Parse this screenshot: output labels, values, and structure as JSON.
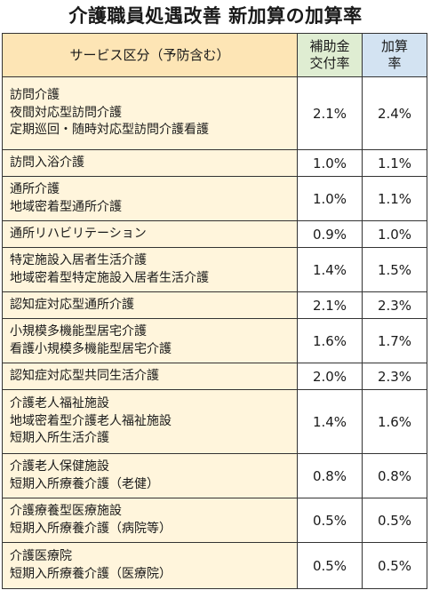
{
  "title": "介護職員処遇改善 新加算の加算率",
  "table": {
    "headers": {
      "service": "サービス区分（予防含む）",
      "subsidy_line1": "補助金",
      "subsidy_line2": "交付率",
      "rate_line1": "加算",
      "rate_line2": "率"
    },
    "rows": [
      {
        "services": [
          "訪問介護",
          "夜間対応型訪問介護",
          "定期巡回・随時対応型訪問介護看護"
        ],
        "subsidy": "2.1%",
        "rate": "2.4%"
      },
      {
        "services": [
          "訪問入浴介護"
        ],
        "subsidy": "1.0%",
        "rate": "1.1%"
      },
      {
        "services": [
          "通所介護",
          "地域密着型通所介護"
        ],
        "subsidy": "1.0%",
        "rate": "1.1%"
      },
      {
        "services": [
          "通所リハビリテーション"
        ],
        "subsidy": "0.9%",
        "rate": "1.0%"
      },
      {
        "services": [
          "特定施設入居者生活介護",
          "地域密着型特定施設入居者生活介護"
        ],
        "subsidy": "1.4%",
        "rate": "1.5%"
      },
      {
        "services": [
          "認知症対応型通所介護"
        ],
        "subsidy": "2.1%",
        "rate": "2.3%"
      },
      {
        "services": [
          "小規模多機能型居宅介護",
          "看護小規模多機能型居宅介護"
        ],
        "subsidy": "1.6%",
        "rate": "1.7%"
      },
      {
        "services": [
          "認知症対応型共同生活介護"
        ],
        "subsidy": "2.0%",
        "rate": "2.3%"
      },
      {
        "services": [
          "介護老人福祉施設",
          "地域密着型介護老人福祉施設",
          "短期入所生活介護"
        ],
        "subsidy": "1.4%",
        "rate": "1.6%"
      },
      {
        "services": [
          "介護老人保健施設",
          "短期入所療養介護（老健）"
        ],
        "subsidy": "0.8%",
        "rate": "0.8%"
      },
      {
        "services": [
          "介護療養型医療施設",
          "短期入所療養介護（病院等）"
        ],
        "subsidy": "0.5%",
        "rate": "0.5%"
      },
      {
        "services": [
          "介護医療院",
          "短期入所療養介護（医療院）"
        ],
        "subsidy": "0.5%",
        "rate": "0.5%"
      }
    ]
  }
}
